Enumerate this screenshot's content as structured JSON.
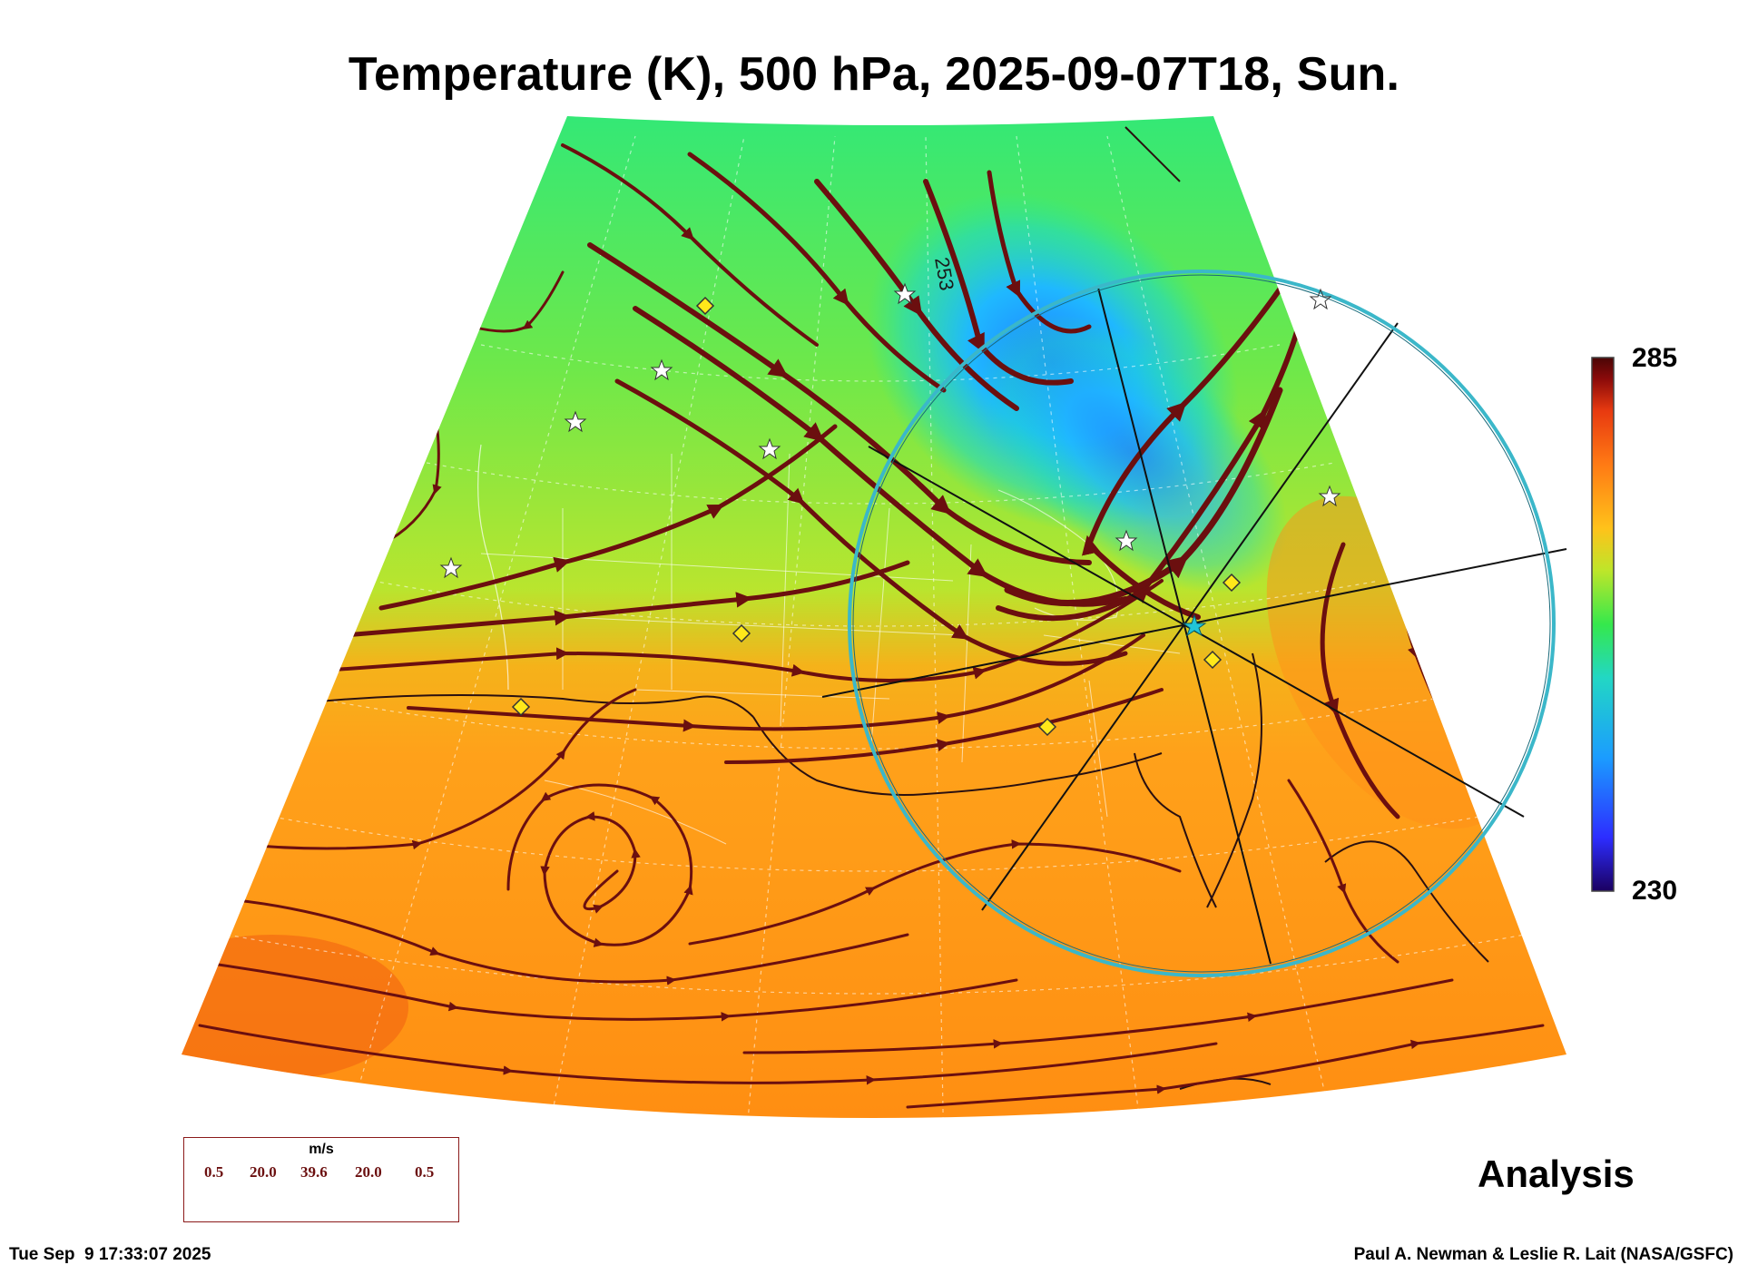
{
  "title": "Temperature (K), 500 hPa, 2025-09-07T18, Sun.",
  "colorbar": {
    "max": "285",
    "min": "230"
  },
  "contour_label": "253",
  "product": "Analysis",
  "legend": {
    "unit": "m/s",
    "values": [
      "0.5",
      "20.0",
      "39.6",
      "20.0",
      "0.5"
    ]
  },
  "footer": {
    "timestamp": "Tue Sep  9 17:33:07 2025",
    "credit": "Paul A. Newman & Leslie R. Lait (NASA/GSFC)"
  },
  "colors": {
    "streamline": "#6b0f0f",
    "circle": "#3bb7c9",
    "colorbar_stops": [
      "#1b0060",
      "#2d2dff",
      "#1b9cff",
      "#22d7c4",
      "#35e84c",
      "#bde62a",
      "#ffc21a",
      "#ff7a14",
      "#e83a10",
      "#8b0a0a",
      "#4a0606"
    ]
  },
  "markers": {
    "star": "star-icon",
    "diamond": "diamond-icon"
  }
}
